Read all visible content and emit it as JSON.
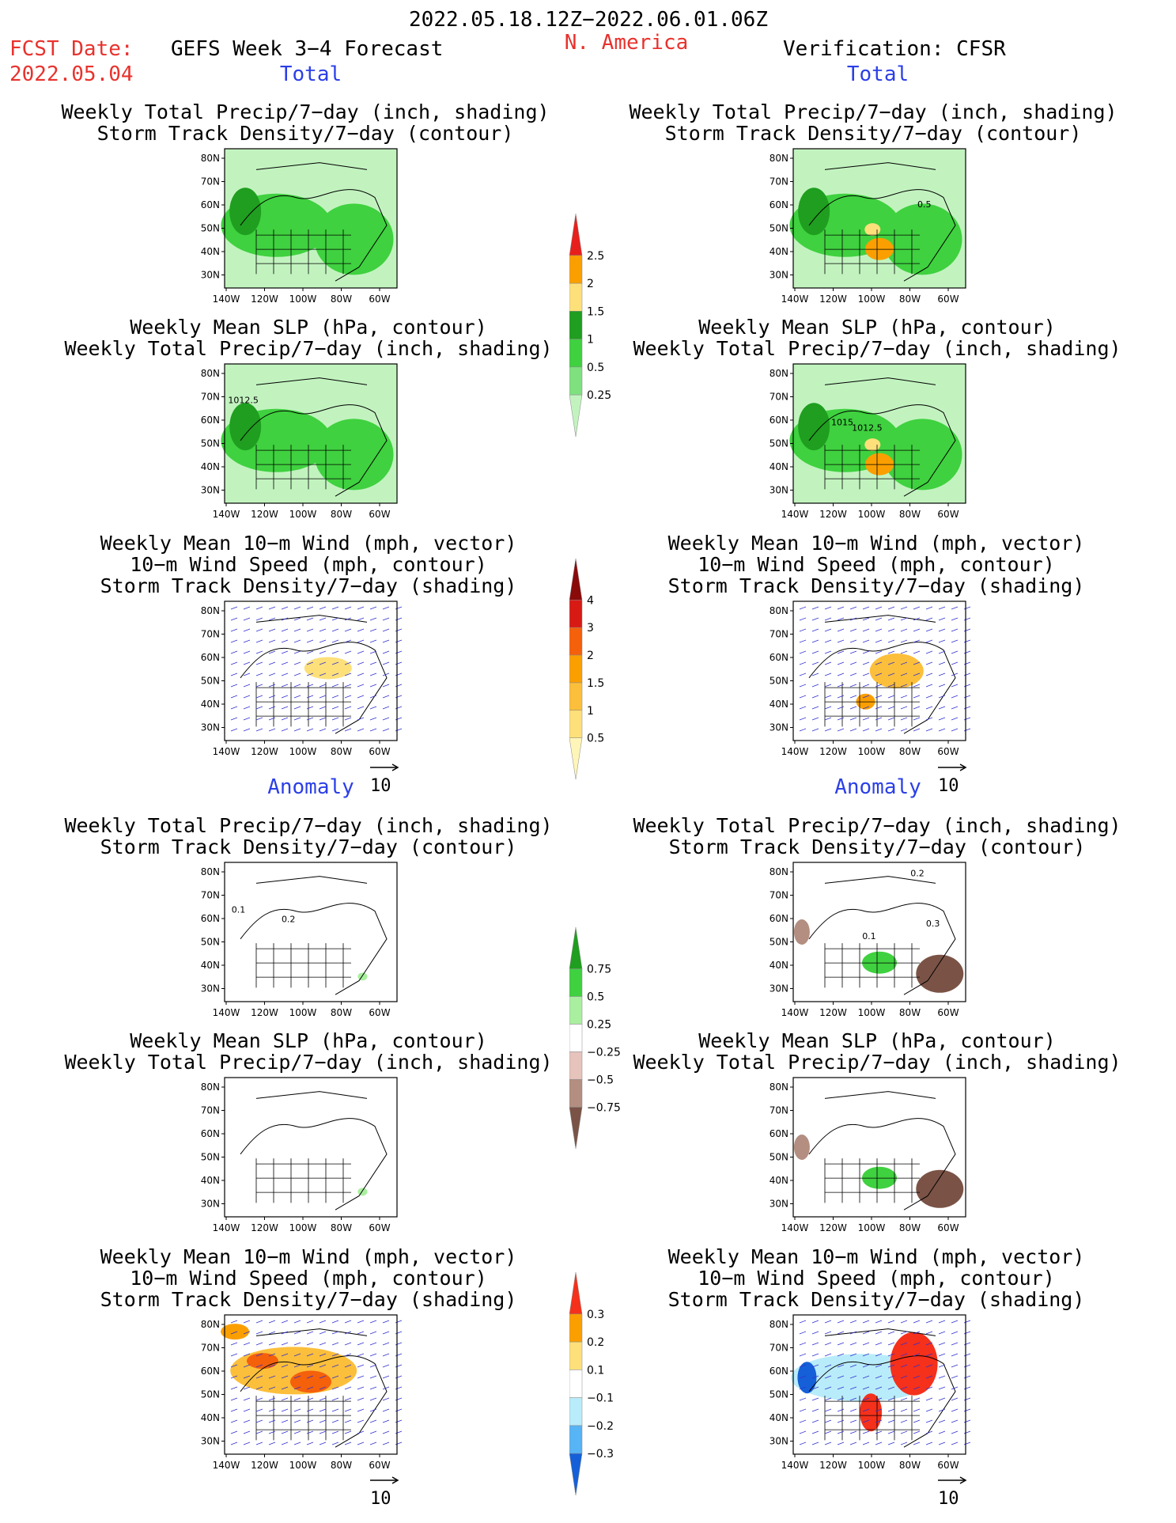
{
  "header": {
    "date_range": "2022.05.18.12Z−2022.06.01.06Z",
    "fcst_label": "FCST Date:",
    "fcst_date": "2022.05.04",
    "left_model": "GEFS Week 3−4 Forecast",
    "region": "N. America",
    "right_model": "Verification: CFSR"
  },
  "sections": {
    "total": "Total",
    "anomaly": "Anomaly"
  },
  "titles": {
    "precip_track": [
      "Weekly Total Precip/7−day (inch, shading)",
      "Storm Track Density/7−day (contour)"
    ],
    "slp_precip": [
      "Weekly Mean SLP (hPa, contour)",
      "Weekly Total Precip/7−day (inch, shading)"
    ],
    "wind": [
      "Weekly Mean 10−m Wind (mph, vector)",
      "10−m Wind Speed (mph, contour)",
      "Storm Track Density/7−day (shading)"
    ]
  },
  "axes": {
    "lat_labels": [
      "80N",
      "70N",
      "60N",
      "50N",
      "40N",
      "30N"
    ],
    "lon_labels": [
      "140W",
      "120W",
      "100W",
      "80W",
      "60W"
    ]
  },
  "vector_ref": "10",
  "colorbars": {
    "precip_total": {
      "labels": [
        "2.5",
        "2",
        "1.5",
        "1",
        "0.5",
        "0.25"
      ],
      "colors": [
        "#e8201c",
        "#fb9f00",
        "#fde07a",
        "#1f9e1f",
        "#3fd13f",
        "#7fe07f",
        "#c2f3bf"
      ]
    },
    "track_total": {
      "labels": [
        "4",
        "3",
        "2",
        "1.5",
        "1",
        "0.5"
      ],
      "colors": [
        "#8a0a0a",
        "#d81a14",
        "#f5600b",
        "#fb9f00",
        "#fbbf3b",
        "#fde07a",
        "#fff5b8"
      ]
    },
    "precip_anom": {
      "labels": [
        "0.75",
        "0.5",
        "0.25",
        "−0.25",
        "−0.5",
        "−0.75"
      ],
      "colors": [
        "#1f9e1f",
        "#3fd13f",
        "#a9ef9f",
        "#ffffff",
        "#e6c3bb",
        "#b38e81",
        "#7a5346"
      ]
    },
    "track_anom": {
      "labels": [
        "0.3",
        "0.2",
        "0.1",
        "−0.1",
        "−0.2",
        "−0.3"
      ],
      "colors": [
        "#f5301b",
        "#fb9f00",
        "#fde07a",
        "#ffffff",
        "#b9ecfa",
        "#57b4f5",
        "#1560d8"
      ]
    }
  },
  "contour_labels": {
    "right_total_precip": "0.5",
    "left_total_slp": "1012.5",
    "right_total_slp_a": "1015",
    "right_total_slp_b": "1012.5",
    "left_anom_precip_a": "0.1",
    "left_anom_precip_b": "0.2",
    "right_anom_precip_a": "0.2",
    "right_anom_precip_b": "0.1",
    "right_anom_precip_c": "0.3"
  }
}
